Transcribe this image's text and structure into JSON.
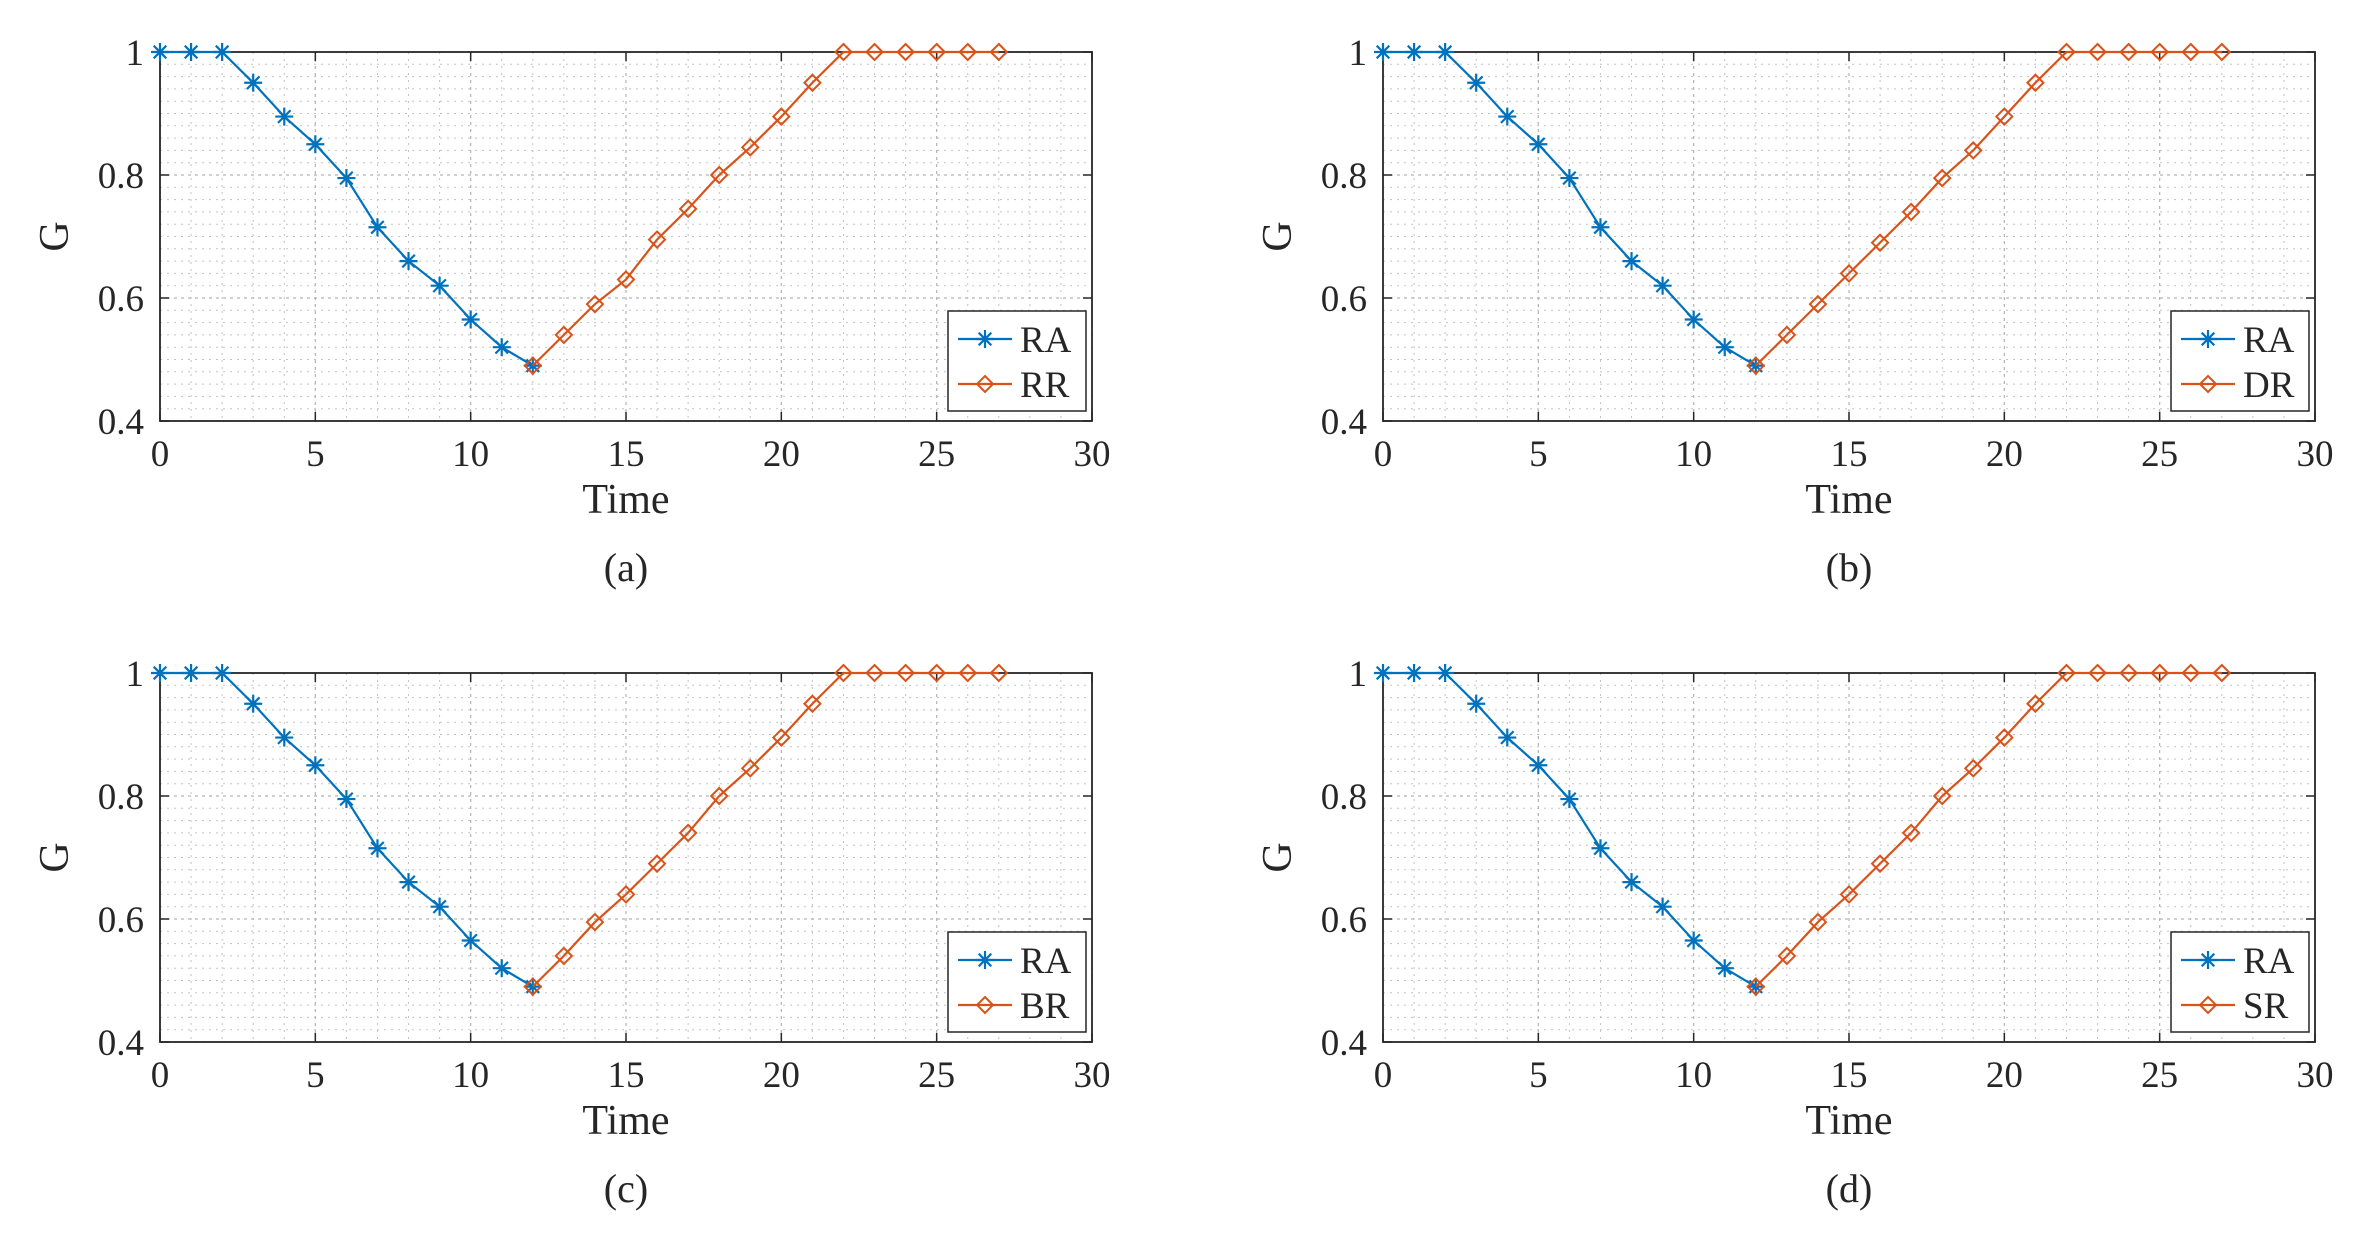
{
  "colors": {
    "ra": "#0072BD",
    "second": "#D95319",
    "axis": "#262626",
    "grid": "#b3b3b3"
  },
  "chart_data": [
    {
      "type": "line",
      "caption": "(a)",
      "xlabel": "Time",
      "ylabel": "G",
      "xlim": [
        0,
        30
      ],
      "ylim": [
        0.4,
        1
      ],
      "xticks": [
        0,
        5,
        10,
        15,
        20,
        25,
        30
      ],
      "yticks": [
        0.4,
        0.6,
        0.8,
        1
      ],
      "ytick_labels": [
        "0.4",
        "0.6",
        "0.8",
        "1"
      ],
      "grid": true,
      "minor_grid": true,
      "legend_position": "lower-right",
      "series": [
        {
          "name": "RA",
          "marker": "asterisk",
          "x": [
            0,
            1,
            2,
            3,
            4,
            5,
            6,
            7,
            8,
            9,
            10,
            11,
            12
          ],
          "y": [
            1,
            1,
            1,
            0.95,
            0.895,
            0.85,
            0.795,
            0.715,
            0.66,
            0.62,
            0.565,
            0.52,
            0.49
          ]
        },
        {
          "name": "RR",
          "marker": "diamond",
          "x": [
            12,
            13,
            14,
            15,
            16,
            17,
            18,
            19,
            20,
            21,
            22,
            23,
            24,
            25,
            26,
            27
          ],
          "y": [
            0.49,
            0.54,
            0.59,
            0.63,
            0.695,
            0.745,
            0.8,
            0.845,
            0.895,
            0.95,
            1,
            1,
            1,
            1,
            1,
            1
          ]
        }
      ]
    },
    {
      "type": "line",
      "caption": "(b)",
      "xlabel": "Time",
      "ylabel": "G",
      "xlim": [
        0,
        30
      ],
      "ylim": [
        0.4,
        1
      ],
      "xticks": [
        0,
        5,
        10,
        15,
        20,
        25,
        30
      ],
      "yticks": [
        0.4,
        0.6,
        0.8,
        1
      ],
      "ytick_labels": [
        "0.4",
        "0.6",
        "0.8",
        "1"
      ],
      "grid": true,
      "minor_grid": true,
      "legend_position": "lower-right",
      "series": [
        {
          "name": "RA",
          "marker": "asterisk",
          "x": [
            0,
            1,
            2,
            3,
            4,
            5,
            6,
            7,
            8,
            9,
            10,
            11,
            12
          ],
          "y": [
            1,
            1,
            1,
            0.95,
            0.895,
            0.85,
            0.795,
            0.715,
            0.66,
            0.62,
            0.565,
            0.52,
            0.49
          ]
        },
        {
          "name": "DR",
          "marker": "diamond",
          "x": [
            12,
            13,
            14,
            15,
            16,
            17,
            18,
            19,
            20,
            21,
            22,
            23,
            24,
            25,
            26,
            27
          ],
          "y": [
            0.49,
            0.54,
            0.59,
            0.64,
            0.69,
            0.74,
            0.795,
            0.84,
            0.895,
            0.95,
            1,
            1,
            1,
            1,
            1,
            1
          ]
        }
      ]
    },
    {
      "type": "line",
      "caption": "(c)",
      "xlabel": "Time",
      "ylabel": "G",
      "xlim": [
        0,
        30
      ],
      "ylim": [
        0.4,
        1
      ],
      "xticks": [
        0,
        5,
        10,
        15,
        20,
        25,
        30
      ],
      "yticks": [
        0.4,
        0.6,
        0.8,
        1
      ],
      "ytick_labels": [
        "0.4",
        "0.6",
        "0.8",
        "1"
      ],
      "grid": true,
      "minor_grid": true,
      "legend_position": "lower-right",
      "series": [
        {
          "name": "RA",
          "marker": "asterisk",
          "x": [
            0,
            1,
            2,
            3,
            4,
            5,
            6,
            7,
            8,
            9,
            10,
            11,
            12
          ],
          "y": [
            1,
            1,
            1,
            0.95,
            0.895,
            0.85,
            0.795,
            0.715,
            0.66,
            0.62,
            0.565,
            0.52,
            0.49
          ]
        },
        {
          "name": "BR",
          "marker": "diamond",
          "x": [
            12,
            13,
            14,
            15,
            16,
            17,
            18,
            19,
            20,
            21,
            22,
            23,
            24,
            25,
            26,
            27
          ],
          "y": [
            0.49,
            0.54,
            0.595,
            0.64,
            0.69,
            0.74,
            0.8,
            0.845,
            0.895,
            0.95,
            1,
            1,
            1,
            1,
            1,
            1
          ]
        }
      ]
    },
    {
      "type": "line",
      "caption": "(d)",
      "xlabel": "Time",
      "ylabel": "G",
      "xlim": [
        0,
        30
      ],
      "ylim": [
        0.4,
        1
      ],
      "xticks": [
        0,
        5,
        10,
        15,
        20,
        25,
        30
      ],
      "yticks": [
        0.4,
        0.6,
        0.8,
        1
      ],
      "ytick_labels": [
        "0.4",
        "0.6",
        "0.8",
        "1"
      ],
      "grid": true,
      "minor_grid": true,
      "legend_position": "lower-right",
      "series": [
        {
          "name": "RA",
          "marker": "asterisk",
          "x": [
            0,
            1,
            2,
            3,
            4,
            5,
            6,
            7,
            8,
            9,
            10,
            11,
            12
          ],
          "y": [
            1,
            1,
            1,
            0.95,
            0.895,
            0.85,
            0.795,
            0.715,
            0.66,
            0.62,
            0.565,
            0.52,
            0.49
          ]
        },
        {
          "name": "SR",
          "marker": "diamond",
          "x": [
            12,
            13,
            14,
            15,
            16,
            17,
            18,
            19,
            20,
            21,
            22,
            23,
            24,
            25,
            26,
            27
          ],
          "y": [
            0.49,
            0.54,
            0.595,
            0.64,
            0.69,
            0.74,
            0.8,
            0.845,
            0.895,
            0.95,
            1,
            1,
            1,
            1,
            1,
            1
          ]
        }
      ]
    }
  ]
}
